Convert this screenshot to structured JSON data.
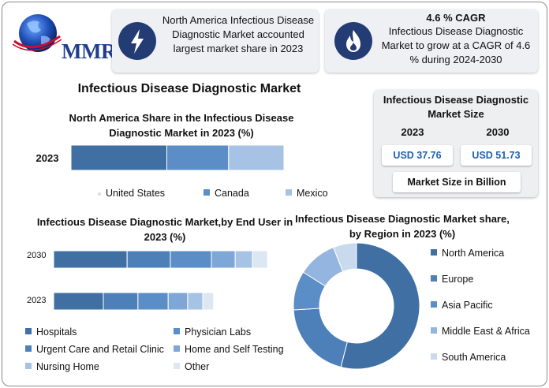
{
  "logo": {
    "text": "MMR"
  },
  "card1": {
    "text": "North America Infectious Disease Diagnostic Market accounted largest market share in 2023"
  },
  "card2": {
    "title": "4.6 % CAGR",
    "text": "Infectious Disease Diagnostic Market to grow at a CAGR of 4.6 % during 2024-2030"
  },
  "main_title": "Infectious Disease Diagnostic Market",
  "market_size": {
    "title": "Infectious Disease Diagnostic Market Size",
    "years": [
      "2023",
      "2030"
    ],
    "values": [
      "USD 37.76",
      "USD 51.73"
    ],
    "footer": "Market Size in Billion"
  },
  "colors": {
    "dark": "#3f6fa3",
    "mid": "#5b8dc7",
    "light": "#a6c2e4",
    "lighter": "#c9daee",
    "icon_bg": "#243c74"
  },
  "chart_data": [
    {
      "type": "bar",
      "orientation": "horizontal-stacked",
      "title": "North America Share in the Infectious Disease Diagnostic Market in 2023 (%)",
      "categories": [
        "2023"
      ],
      "series": [
        {
          "name": "United States",
          "values": [
            45
          ]
        },
        {
          "name": "Canada",
          "values": [
            29
          ]
        },
        {
          "name": "Mexico",
          "values": [
            26
          ]
        }
      ],
      "legend": "bottom"
    },
    {
      "type": "bar",
      "orientation": "horizontal-stacked",
      "title": "Infectious Disease Diagnostic Market,by End User in 2023 (%)",
      "categories": [
        "2030",
        "2023"
      ],
      "series": [
        {
          "name": "Hospitals",
          "values": [
            34,
            23
          ]
        },
        {
          "name": "Urgent Care and Retail Clinic",
          "values": [
            20,
            16
          ]
        },
        {
          "name": "Physician Labs",
          "values": [
            19,
            14
          ]
        },
        {
          "name": "Home and Self Testing",
          "values": [
            11,
            9
          ]
        },
        {
          "name": "Nursing Home",
          "values": [
            8,
            7
          ]
        },
        {
          "name": "Other",
          "values": [
            7,
            5
          ]
        }
      ],
      "legend": "bottom"
    },
    {
      "type": "pie",
      "donut": true,
      "title": "Infectious Disease Diagnostic Market share, by Region in 2023 (%)",
      "categories": [
        "North America",
        "Europe",
        "Asia Pacific",
        "Middle East & Africa",
        "South America"
      ],
      "values": [
        54,
        20,
        10,
        10,
        6
      ],
      "legend": "right"
    }
  ]
}
